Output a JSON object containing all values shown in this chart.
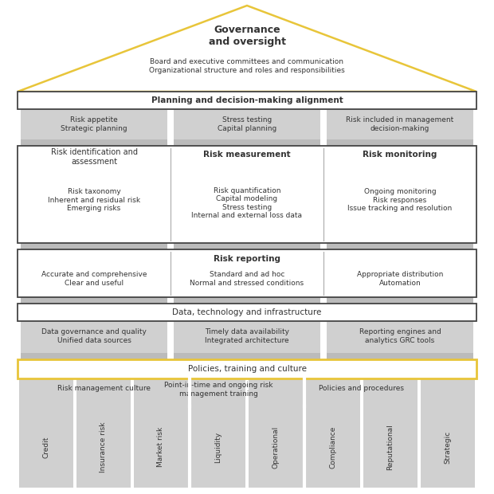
{
  "bg_color": "#ffffff",
  "yellow": "#e8c53a",
  "gray_bg": "#d0d0d0",
  "box_border": "#444444",
  "text_dark": "#333333",
  "light_gray_sep": "#c0c0c0",
  "gov_title": "Governance\nand oversight",
  "gov_subtitle": "Board and executive committees and communication\nOrganizational structure and roles and responsibilities",
  "plan_title": "Planning and decision-making alignment",
  "plan_items": [
    "Risk appetite\nStrategic planning",
    "Stress testing\nCapital planning",
    "Risk included in management\ndecision-making"
  ],
  "rcore_col1_title": "Risk identification and\nassessment",
  "rcore_col1_items": "Risk taxonomy\nInherent and residual risk\nEmerging risks",
  "rcore_col2_title": "Risk measurement",
  "rcore_col2_items": "Risk quantification\nCapital modeling\nStress testing\nInternal and external loss data",
  "rcore_col3_title": "Risk monitoring",
  "rcore_col3_items": "Ongoing monitoring\nRisk responses\nIssue tracking and resolution",
  "rep_title": "Risk reporting",
  "rep_items": [
    "Accurate and comprehensive\nClear and useful",
    "Standard and ad hoc\nNormal and stressed conditions",
    "Appropriate distribution\nAutomation"
  ],
  "data_title": "Data, technology and infrastructure",
  "data_items": [
    "Data governance and quality\nUnified data sources",
    "Timely data availability\nIntegrated architecture",
    "Reporting engines and\nanalytics GRC tools"
  ],
  "pol_title": "Policies, training and culture",
  "pol_sub1": "Risk management culture",
  "pol_sub2": "Point-in-time and ongoing risk\nmanagement training",
  "pol_sub3": "Policies and procedures",
  "bot_items": [
    "Credit",
    "Insurance risk",
    "Market risk",
    "Liquidity",
    "Operational",
    "Compliance",
    "Reputational",
    "Strategic"
  ]
}
